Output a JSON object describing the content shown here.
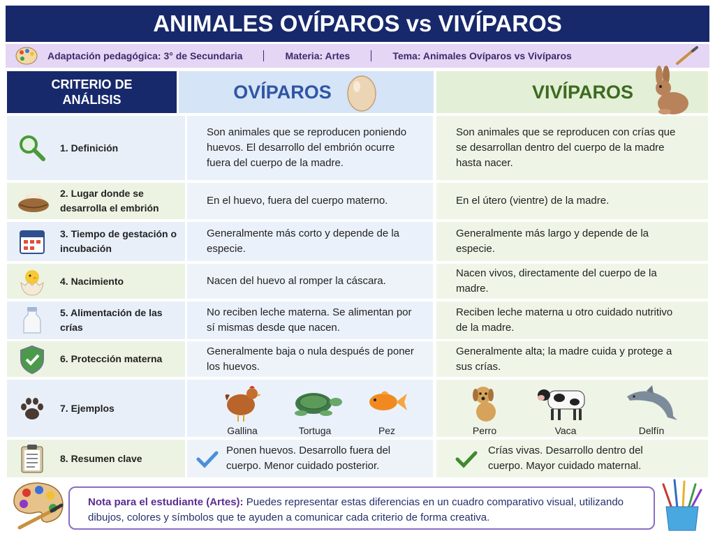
{
  "title": "ANIMALES OVÍPAROS vs VIVÍPAROS",
  "info_bar": [
    "Adaptación pedagógica: 3° de Secundaria",
    "Materia: Artes",
    "Tema: Animales Ovíparos vs Vivíparos"
  ],
  "table": {
    "headers": [
      "CRITERIO DE ANÁLISIS",
      "OVÍPAROS",
      "VIVÍPAROS"
    ],
    "rows": [
      [
        "1. Definición",
        "Son animales que se reproducen poniendo huevos. El desarrollo del embrión ocurre fuera del cuerpo de la madre.",
        "Son animales que se reproducen con crías que se desarrollan dentro del cuerpo de la madre hasta nacer."
      ],
      [
        "2. Lugar donde se desarrolla el embrión",
        "En el huevo, fuera del cuerpo materno.",
        "En el útero (vientre) de la madre."
      ],
      [
        "3. Tiempo de gestación o incubación",
        "Generalmente más corto y depende de la especie.",
        "Generalmente más largo y depende de la especie."
      ],
      [
        "4. Nacimiento",
        "Nacen del huevo al romper la cáscara.",
        "Nacen vivos, directamente del cuerpo de la madre."
      ],
      [
        "5. Alimentación de las crías",
        "No reciben leche materna. Se alimentan por sí mismas desde que nacen.",
        "Reciben leche materna u otro cuidado nutritivo de la madre."
      ],
      [
        "6. Protección materna",
        "Generalmente baja o nula después de poner los huevos.",
        "Generalmente alta; la madre cuida y protege a sus crías."
      ],
      [
        "7. Ejemplos",
        [
          "Gallina",
          "Tortuga",
          "Pez"
        ],
        [
          "Perro",
          "Vaca",
          "Delfín"
        ]
      ],
      [
        "8. Resumen clave",
        "Ponen huevos. Desarrollo fuera del cuerpo. Menor cuidado posterior.",
        "Crías vivas. Desarrollo dentro del cuerpo. Mayor cuidado maternal."
      ]
    ]
  },
  "note": {
    "label": "Nota para el estudiante (Artes):",
    "text": "Puedes representar estas diferencias en un cuadro comparativo visual, utilizando dibujos, colores y símbolos que te ayuden a comunicar cada criterio de forma creativa."
  }
}
